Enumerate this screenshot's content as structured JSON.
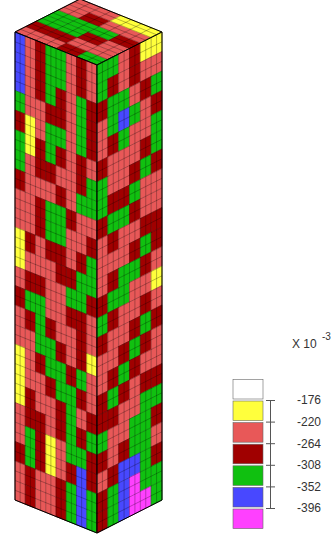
{
  "chart_data": {
    "type": "contour",
    "colorbar": {
      "range": [
        -176,
        -396
      ],
      "ticks": [
        -176,
        -220,
        -264,
        -308,
        -352,
        -396
      ],
      "colors": [
        "#ffffff",
        "#ffff3c",
        "#e85858",
        "#a00000",
        "#10c010",
        "#4848ff",
        "#ff40ff"
      ],
      "scale_label": "X 10",
      "scale_exponent": "-3"
    },
    "top_cells": [
      [
        -248,
        -292,
        -330,
        -318,
        -262,
        -240
      ],
      [
        -236,
        -283,
        -344,
        -337,
        -270,
        -229
      ],
      [
        -270,
        -256,
        -301,
        -322,
        -247,
        -214
      ],
      [
        -314,
        -262,
        -243,
        -289,
        -236,
        -205
      ]
    ],
    "front_cells": [
      [
        -372,
        -240,
        -286,
        -331,
        -327,
        -244,
        -291,
        -238
      ],
      [
        -368,
        -236,
        -279,
        -336,
        -318,
        -252,
        -296,
        -262
      ],
      [
        -355,
        -247,
        -288,
        -312,
        -270,
        -241,
        -330,
        -284
      ],
      [
        -322,
        -258,
        -231,
        -281,
        -292,
        -236,
        -341,
        -300
      ],
      [
        -290,
        -205,
        -240,
        -325,
        -335,
        -249,
        -318,
        -276
      ],
      [
        -318,
        -212,
        -268,
        -340,
        -304,
        -238,
        -287,
        -244
      ],
      [
        -330,
        -243,
        -294,
        -283,
        -246,
        -226,
        -265,
        -321
      ],
      [
        -298,
        -233,
        -237,
        -251,
        -289,
        -262,
        -312,
        -334
      ],
      [
        -246,
        -228,
        -279,
        -316,
        -338,
        -284,
        -256,
        -240
      ],
      [
        -235,
        -262,
        -290,
        -345,
        -320,
        -243,
        -237,
        -281
      ],
      [
        -214,
        -285,
        -258,
        -301,
        -274,
        -224,
        -292,
        -326
      ],
      [
        -208,
        -240,
        -231,
        -248,
        -268,
        -296,
        -330,
        -315
      ],
      [
        -244,
        -272,
        -296,
        -238,
        -226,
        -312,
        -342,
        -289
      ],
      [
        -281,
        -318,
        -322,
        -257,
        -241,
        -288,
        -303,
        -250
      ],
      [
        -236,
        -296,
        -341,
        -286,
        -234,
        -256,
        -268,
        -229
      ],
      [
        -228,
        -247,
        -309,
        -318,
        -272,
        -243,
        -296,
        -214
      ],
      [
        -212,
        -235,
        -268,
        -333,
        -317,
        -284,
        -310,
        -232
      ],
      [
        -198,
        -256,
        -243,
        -291,
        -340,
        -326,
        -281,
        -247
      ],
      [
        -220,
        -283,
        -229,
        -252,
        -299,
        -314,
        -250,
        -272
      ],
      [
        -246,
        -297,
        -271,
        -236,
        -268,
        -338,
        -290,
        -312
      ],
      [
        -261,
        -322,
        -302,
        -203,
        -244,
        -325,
        -344,
        -286
      ],
      [
        -289,
        -336,
        -265,
        -211,
        -259,
        -301,
        -358,
        -275
      ],
      [
        -240,
        -305,
        -242,
        -236,
        -287,
        -318,
        -376,
        -309
      ],
      [
        -255,
        -268,
        -231,
        -264,
        -298,
        -343,
        -388,
        -332
      ]
    ],
    "side_cells": [
      [
        -328,
        -335,
        -246,
        -289,
        -210,
        -196
      ],
      [
        -320,
        -294,
        -231,
        -268,
        -243,
        -225
      ],
      [
        -276,
        -338,
        -347,
        -262,
        -286,
        -314
      ],
      [
        -241,
        -317,
        -372,
        -309,
        -247,
        -296
      ],
      [
        -262,
        -292,
        -326,
        -254,
        -228,
        -320
      ],
      [
        -284,
        -246,
        -263,
        -236,
        -305,
        -338
      ],
      [
        -318,
        -251,
        -230,
        -272,
        -329,
        -282
      ],
      [
        -337,
        -302,
        -268,
        -315,
        -264,
        -233
      ],
      [
        -296,
        -331,
        -314,
        -287,
        -238,
        -250
      ],
      [
        -248,
        -276,
        -237,
        -240,
        -281,
        -305
      ],
      [
        -226,
        -238,
        -262,
        -306,
        -334,
        -276
      ],
      [
        -254,
        -292,
        -334,
        -321,
        -285,
        -241
      ],
      [
        -285,
        -330,
        -316,
        -263,
        -236,
        -212
      ],
      [
        -312,
        -278,
        -242,
        -258,
        -289,
        -246
      ],
      [
        -281,
        -236,
        -226,
        -301,
        -327,
        -284
      ],
      [
        -244,
        -262,
        -290,
        -336,
        -308,
        -259
      ],
      [
        -233,
        -295,
        -328,
        -289,
        -251,
        -238
      ],
      [
        -267,
        -321,
        -276,
        -243,
        -266,
        -294
      ],
      [
        -301,
        -283,
        -241,
        -262,
        -312,
        -327
      ],
      [
        -322,
        -247,
        -254,
        -309,
        -345,
        -288
      ],
      [
        -286,
        -233,
        -290,
        -341,
        -318,
        -262
      ],
      [
        -252,
        -296,
        -366,
        -381,
        -329,
        -280
      ],
      [
        -271,
        -338,
        -392,
        -405,
        -352,
        -311
      ],
      [
        -298,
        -347,
        -376,
        -412,
        -398,
        -336
      ]
    ]
  }
}
